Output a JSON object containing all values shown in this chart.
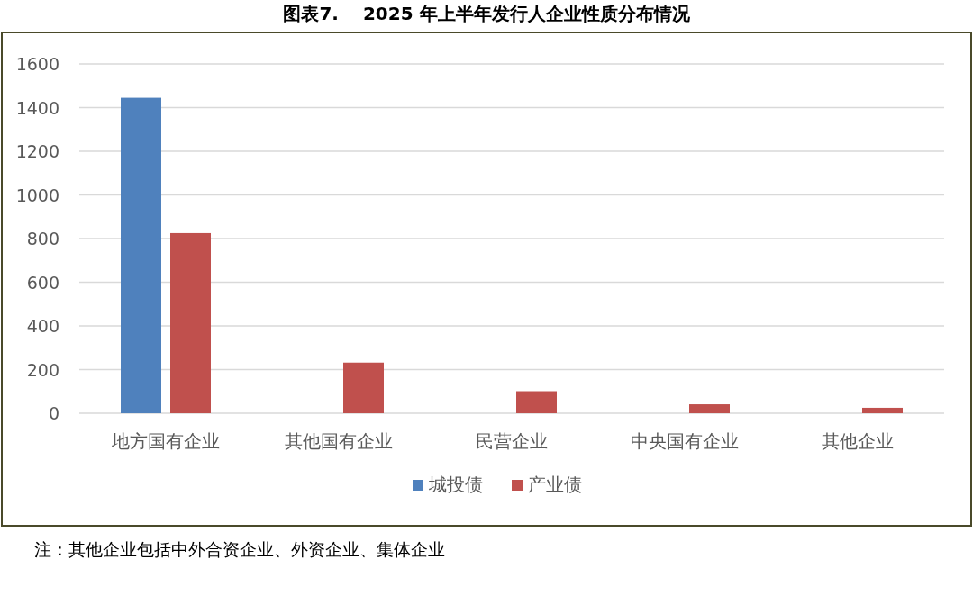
{
  "chart_data": {
    "type": "bar",
    "title": "图表7.　 2025 年上半年发行人企业性质分布情况",
    "categories": [
      "地方国有企业",
      "其他国有企业",
      "民营企业",
      "中央国有企业",
      "其他企业"
    ],
    "series": [
      {
        "name": "城投债",
        "color": "#4f81bd",
        "values": [
          1445,
          0,
          0,
          0,
          0
        ]
      },
      {
        "name": "产业债",
        "color": "#c0504d",
        "values": [
          825,
          232,
          101,
          41,
          25
        ]
      }
    ],
    "ylim": [
      0,
      1600
    ],
    "yticks": [
      0,
      200,
      400,
      600,
      800,
      1000,
      1200,
      1400,
      1600
    ],
    "grid": "y",
    "legend": "bottom",
    "annotations": [
      "注：其他企业包括中外合资企业、外资企业、集体企业"
    ]
  }
}
